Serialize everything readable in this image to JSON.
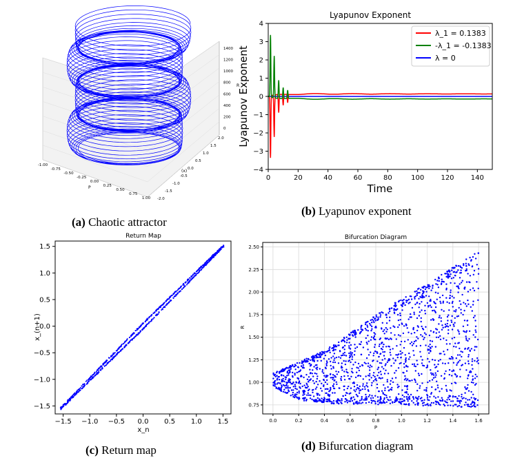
{
  "chart_data": [
    {
      "type": "line3d",
      "panel": "a",
      "title": "",
      "xlabel": "P",
      "ylabel": "(x)",
      "zlabel": "R",
      "xticks": [
        "-1.00",
        "-0.75",
        "-0.50",
        "-0.25",
        "0.00",
        "0.25",
        "0.50",
        "0.75",
        "1.00"
      ],
      "yticks": [
        "-2.0",
        "-1.5",
        "-1.0",
        "-0.5",
        "0.0",
        "0.5",
        "1.0",
        "1.5",
        "2.0"
      ],
      "zticks": [
        "0",
        "200",
        "400",
        "600",
        "800",
        "1000",
        "1200",
        "1400"
      ],
      "series": [
        {
          "name": "trajectory",
          "color": "#0000ff",
          "turns": 60,
          "z_range": [
            0,
            1400
          ]
        }
      ]
    },
    {
      "type": "line",
      "panel": "b",
      "title": "Lyapunov Exponent",
      "xlabel": "Time",
      "ylabel": "Lyapunov Exponent",
      "xlim": [
        0,
        150
      ],
      "ylim": [
        -4,
        4
      ],
      "xticks": [
        "0",
        "20",
        "40",
        "60",
        "80",
        "100",
        "120",
        "140"
      ],
      "yticks": [
        "4",
        "3",
        "2",
        "1",
        "0",
        "−1",
        "−2",
        "−3",
        "−4"
      ],
      "legend": "top-right",
      "series": [
        {
          "name": "λ_1 = 0.1383",
          "color": "#ff0000",
          "final": 0.1383
        },
        {
          "name": "-λ_1 = -0.1383",
          "color": "#008000",
          "final": -0.1383
        },
        {
          "name": "λ = 0",
          "color": "#0000ff",
          "final": 0
        }
      ],
      "transient_peaks": [
        {
          "x": 1.5,
          "y": 3.4
        },
        {
          "x": 4,
          "y": 2.3
        },
        {
          "x": 7,
          "y": 1.0
        },
        {
          "x": 10,
          "y": 0.6
        },
        {
          "x": 13,
          "y": 0.45
        }
      ]
    },
    {
      "type": "scatter",
      "panel": "c",
      "title": "Return Map",
      "xlabel": "x_n",
      "ylabel": "x_(n+1)",
      "xlim": [
        -1.65,
        1.65
      ],
      "ylim": [
        -1.65,
        1.6
      ],
      "xticks": [
        "−1.5",
        "−1.0",
        "−0.5",
        "0.0",
        "0.5",
        "1.0",
        "1.5"
      ],
      "yticks": [
        "1.5",
        "1.0",
        "0.5",
        "0.0",
        "−0.5",
        "−1.0",
        "−1.5"
      ],
      "color": "#0000ff",
      "points_description_range": [
        -1.55,
        1.52
      ]
    },
    {
      "type": "scatter",
      "panel": "d",
      "title": "Bifurcation Diagram",
      "xlabel": "P",
      "ylabel": "R",
      "xlim": [
        -0.08,
        1.68
      ],
      "ylim": [
        0.65,
        2.55
      ],
      "xticks": [
        "0.0",
        "0.2",
        "0.4",
        "0.6",
        "0.8",
        "1.0",
        "1.2",
        "1.4",
        "1.6"
      ],
      "yticks": [
        "2.50",
        "2.25",
        "2.00",
        "1.75",
        "1.50",
        "1.25",
        "1.00",
        "0.75"
      ],
      "grid": true,
      "color": "#0000ff",
      "upper_envelope": [
        [
          0,
          1.1
        ],
        [
          0.4,
          1.35
        ],
        [
          0.8,
          1.75
        ],
        [
          1.2,
          2.1
        ],
        [
          1.6,
          2.45
        ]
      ],
      "lower_envelope": [
        [
          0,
          0.95
        ],
        [
          0.2,
          0.8
        ],
        [
          0.5,
          0.76
        ],
        [
          1.0,
          0.75
        ],
        [
          1.6,
          0.72
        ]
      ]
    }
  ],
  "captions": {
    "a_label": "(a)",
    "a_text": " Chaotic attractor",
    "b_label": "(b)",
    "b_text": " Lyapunov exponent",
    "c_label": "(c)",
    "c_text": " Return map",
    "d_label": "(d)",
    "d_text": " Bifurcation diagram"
  }
}
